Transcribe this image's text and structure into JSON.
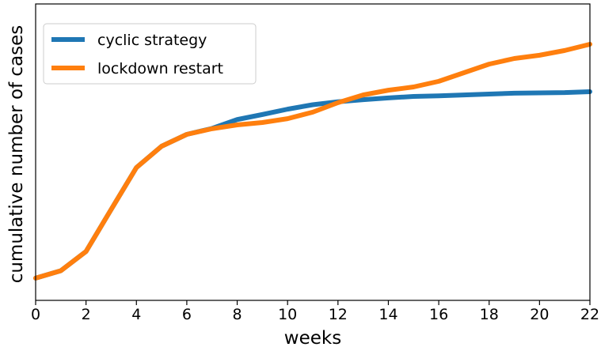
{
  "chart_data": {
    "type": "line",
    "x_label": "weeks",
    "y_label": "cumulative number of cases",
    "x": [
      0,
      1,
      2,
      3,
      4,
      5,
      6,
      7,
      8,
      9,
      10,
      11,
      12,
      13,
      14,
      15,
      16,
      17,
      18,
      19,
      20,
      21,
      22
    ],
    "series": [
      {
        "name": "cyclic strategy",
        "color": "#1f77b4",
        "values": [
          7.5,
          10,
          16.5,
          30.7,
          44.8,
          52,
          56,
          58,
          61,
          62.7,
          64.5,
          66,
          67,
          67.7,
          68.3,
          68.8,
          69,
          69.3,
          69.6,
          69.9,
          70,
          70.1,
          70.4
        ]
      },
      {
        "name": "lockdown restart",
        "color": "#ff7f0e",
        "values": [
          7.5,
          10,
          16.5,
          30.7,
          44.8,
          52,
          56,
          57.9,
          59.2,
          60,
          61.3,
          63.5,
          66.7,
          69.3,
          70.9,
          72,
          73.9,
          76.8,
          79.7,
          81.6,
          82.7,
          84.3,
          86.4
        ]
      }
    ],
    "xlim": [
      0,
      22
    ],
    "xticks": [
      0,
      2,
      4,
      6,
      8,
      10,
      12,
      14,
      16,
      18,
      20,
      22
    ],
    "ylim": [
      0,
      100
    ],
    "legend": "upper left"
  }
}
